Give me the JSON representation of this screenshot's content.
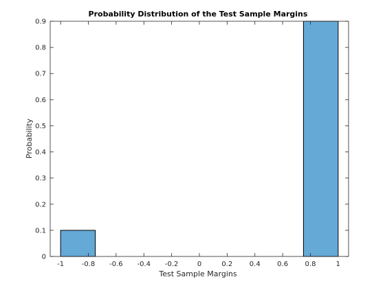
{
  "chart_data": {
    "type": "bar",
    "title": "Probability Distribution of the Test Sample Margins",
    "xlabel": "Test Sample Margins",
    "ylabel": "Probability",
    "xlim": [
      -1.075,
      1.075
    ],
    "ylim": [
      0,
      0.9
    ],
    "grid": false,
    "legend": "none",
    "x_ticks": [
      -1,
      -0.8,
      -0.6,
      -0.4,
      -0.2,
      0,
      0.2,
      0.4,
      0.6,
      0.8,
      1
    ],
    "x_tick_labels": [
      "-1",
      "-0.8",
      "-0.6",
      "-0.4",
      "-0.2",
      "0",
      "0.2",
      "0.4",
      "0.6",
      "0.8",
      "1"
    ],
    "y_ticks": [
      0,
      0.1,
      0.2,
      0.3,
      0.4,
      0.5,
      0.6,
      0.7,
      0.8,
      0.9
    ],
    "y_tick_labels": [
      "0",
      "0.1",
      "0.2",
      "0.3",
      "0.4",
      "0.5",
      "0.6",
      "0.7",
      "0.8",
      "0.9"
    ],
    "bins": [
      {
        "start": -1.0,
        "end": -0.75,
        "value": 0.1
      },
      {
        "start": 0.75,
        "end": 1.0,
        "value": 0.9
      }
    ],
    "bar_color": "#65a9d7",
    "bar_edge_color": "#000000"
  }
}
